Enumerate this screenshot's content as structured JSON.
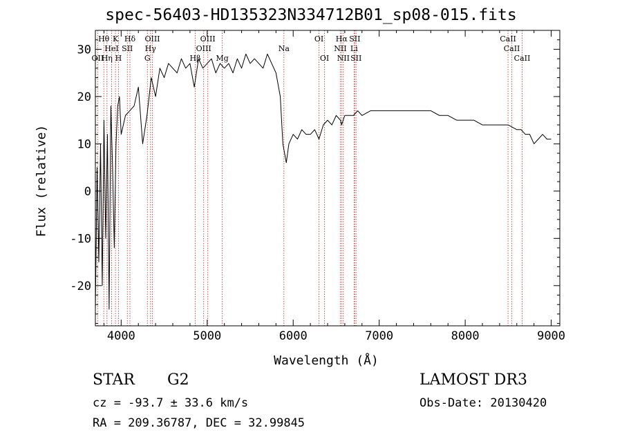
{
  "chart_data": {
    "type": "line",
    "title": "spec-56403-HD135323N334712B01_sp08-015.fits",
    "xlabel": "Wavelength (Å)",
    "ylabel": "Flux (relative)",
    "xlim": [
      3700,
      9100
    ],
    "ylim": [
      -28.5,
      34
    ],
    "xticks": [
      4000,
      5000,
      6000,
      7000,
      8000,
      9000
    ],
    "yticks": [
      -20,
      -10,
      0,
      10,
      20,
      30
    ],
    "grid": false,
    "series": [
      {
        "name": "flux",
        "x": [
          3700,
          3720,
          3740,
          3760,
          3780,
          3800,
          3820,
          3840,
          3860,
          3880,
          3900,
          3920,
          3940,
          3960,
          3980,
          4000,
          4050,
          4100,
          4150,
          4200,
          4250,
          4300,
          4350,
          4400,
          4450,
          4500,
          4550,
          4600,
          4650,
          4700,
          4750,
          4800,
          4850,
          4900,
          4950,
          5000,
          5050,
          5100,
          5150,
          5200,
          5250,
          5300,
          5350,
          5400,
          5450,
          5500,
          5550,
          5600,
          5650,
          5700,
          5750,
          5800,
          5850,
          5880,
          5900,
          5920,
          5950,
          6000,
          6050,
          6100,
          6150,
          6200,
          6250,
          6300,
          6350,
          6400,
          6450,
          6500,
          6550,
          6563,
          6600,
          6650,
          6700,
          6750,
          6800,
          6900,
          7000,
          7100,
          7200,
          7300,
          7400,
          7500,
          7600,
          7700,
          7800,
          7900,
          8000,
          8100,
          8200,
          8300,
          8400,
          8500,
          8600,
          8650,
          8700,
          8750,
          8800,
          8850,
          8900,
          8950,
          9000
        ],
        "y": [
          -25,
          5,
          -15,
          10,
          -20,
          15,
          -10,
          12,
          -25,
          18,
          5,
          -12,
          10,
          18,
          20,
          12,
          16,
          17,
          18,
          22,
          10,
          16,
          24,
          20,
          26,
          24,
          27,
          26,
          25,
          28,
          26,
          27,
          22,
          28,
          26,
          27,
          28,
          25,
          27,
          26,
          27,
          25,
          28,
          26,
          29,
          27,
          28,
          27,
          26,
          29,
          27,
          25,
          20,
          10,
          8,
          6,
          10,
          12,
          11,
          13,
          12,
          12,
          13,
          11,
          14,
          15,
          14,
          16,
          15,
          14,
          16,
          16,
          16,
          17,
          16,
          17,
          17,
          17,
          17,
          17,
          17,
          17,
          17,
          16,
          16,
          15,
          15,
          15,
          14,
          14,
          14,
          14,
          13,
          13,
          12,
          12,
          10,
          11,
          12,
          11,
          11
        ]
      }
    ],
    "line_markers": [
      {
        "wl": 3727,
        "label": "OII",
        "row": 2
      },
      {
        "wl": 3798,
        "label": "Hθ",
        "row": 0
      },
      {
        "wl": 3835,
        "label": "Hη",
        "row": 2
      },
      {
        "wl": 3889,
        "label": "HeI",
        "row": 1
      },
      {
        "wl": 3934,
        "label": "K",
        "row": 0
      },
      {
        "wl": 3969,
        "label": "H",
        "row": 2
      },
      {
        "wl": 4072,
        "label": "SII",
        "row": 1
      },
      {
        "wl": 4102,
        "label": "Hδ",
        "row": 0
      },
      {
        "wl": 4305,
        "label": "G",
        "row": 2
      },
      {
        "wl": 4341,
        "label": "Hγ",
        "row": 1
      },
      {
        "wl": 4363,
        "label": "OIII",
        "row": 0
      },
      {
        "wl": 4861,
        "label": "Hβ",
        "row": 2
      },
      {
        "wl": 4959,
        "label": "OIII",
        "row": 1
      },
      {
        "wl": 5007,
        "label": "OIII",
        "row": 0
      },
      {
        "wl": 5175,
        "label": "Mg",
        "row": 2
      },
      {
        "wl": 5892,
        "label": "Na",
        "row": 1
      },
      {
        "wl": 6300,
        "label": "OI",
        "row": 0
      },
      {
        "wl": 6364,
        "label": "OI",
        "row": 2
      },
      {
        "wl": 6548,
        "label": "NII",
        "row": 1
      },
      {
        "wl": 6563,
        "label": "Hα",
        "row": 0
      },
      {
        "wl": 6583,
        "label": "NII",
        "row": 2
      },
      {
        "wl": 6708,
        "label": "Li",
        "row": 1
      },
      {
        "wl": 6716,
        "label": "SII",
        "row": 0
      },
      {
        "wl": 6731,
        "label": "SII",
        "row": 2
      },
      {
        "wl": 8498,
        "label": "CaII",
        "row": 0
      },
      {
        "wl": 8542,
        "label": "CaII",
        "row": 1
      },
      {
        "wl": 8662,
        "label": "CaII",
        "row": 2
      }
    ]
  },
  "info": {
    "class_label": "STAR",
    "subclass_label": "G2",
    "survey": "LAMOST DR3",
    "cz": "cz = -93.7 ± 33.6 km/s",
    "obs_date": "Obs-Date: 20130420",
    "coords": "RA = 209.36787, DEC =  32.99845"
  },
  "colors": {
    "line": "#000000",
    "marker": "#c0504d",
    "axis": "#000000"
  }
}
